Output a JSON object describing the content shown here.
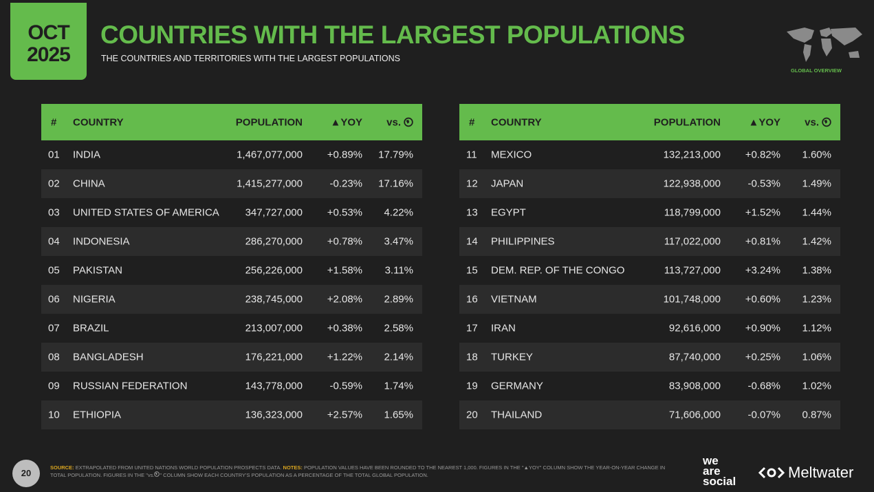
{
  "header": {
    "month": "OCT",
    "year": "2025",
    "title": "COUNTRIES WITH THE LARGEST POPULATIONS",
    "subtitle": "THE COUNTRIES AND TERRITORIES WITH THE LARGEST POPULATIONS",
    "badge": "GLOBAL OVERVIEW"
  },
  "tables": [
    {
      "columns": [
        "#",
        "COUNTRY",
        "POPULATION",
        "▲YOY",
        "vs."
      ],
      "rows": [
        [
          "01",
          "INDIA",
          "1,467,077,000",
          "+0.89%",
          "17.79%"
        ],
        [
          "02",
          "CHINA",
          "1,415,277,000",
          "-0.23%",
          "17.16%"
        ],
        [
          "03",
          "UNITED STATES OF AMERICA",
          "347,727,000",
          "+0.53%",
          "4.22%"
        ],
        [
          "04",
          "INDONESIA",
          "286,270,000",
          "+0.78%",
          "3.47%"
        ],
        [
          "05",
          "PAKISTAN",
          "256,226,000",
          "+1.58%",
          "3.11%"
        ],
        [
          "06",
          "NIGERIA",
          "238,745,000",
          "+2.08%",
          "2.89%"
        ],
        [
          "07",
          "BRAZIL",
          "213,007,000",
          "+0.38%",
          "2.58%"
        ],
        [
          "08",
          "BANGLADESH",
          "176,221,000",
          "+1.22%",
          "2.14%"
        ],
        [
          "09",
          "RUSSIAN FEDERATION",
          "143,778,000",
          "-0.59%",
          "1.74%"
        ],
        [
          "10",
          "ETHIOPIA",
          "136,323,000",
          "+2.57%",
          "1.65%"
        ]
      ]
    },
    {
      "columns": [
        "#",
        "COUNTRY",
        "POPULATION",
        "▲YOY",
        "vs."
      ],
      "rows": [
        [
          "11",
          "MEXICO",
          "132,213,000",
          "+0.82%",
          "1.60%"
        ],
        [
          "12",
          "JAPAN",
          "122,938,000",
          "-0.53%",
          "1.49%"
        ],
        [
          "13",
          "EGYPT",
          "118,799,000",
          "+1.52%",
          "1.44%"
        ],
        [
          "14",
          "PHILIPPINES",
          "117,022,000",
          "+0.81%",
          "1.42%"
        ],
        [
          "15",
          "DEM. REP. OF THE CONGO",
          "113,727,000",
          "+3.24%",
          "1.38%"
        ],
        [
          "16",
          "VIETNAM",
          "101,748,000",
          "+0.60%",
          "1.23%"
        ],
        [
          "17",
          "IRAN",
          "92,616,000",
          "+0.90%",
          "1.12%"
        ],
        [
          "18",
          "TURKEY",
          "87,740,000",
          "+0.25%",
          "1.06%"
        ],
        [
          "19",
          "GERMANY",
          "83,908,000",
          "-0.68%",
          "1.02%"
        ],
        [
          "20",
          "THAILAND",
          "71,606,000",
          "-0.07%",
          "0.87%"
        ]
      ]
    }
  ],
  "footer": {
    "page": "20",
    "source_label": "SOURCE:",
    "source": "EXTRAPOLATED FROM UNITED NATIONS WORLD POPULATION PROSPECTS DATA.",
    "notes_label": "NOTES:",
    "notes_1": "POPULATION VALUES HAVE BEEN ROUNDED TO THE NEAREST 1,000. FIGURES IN THE \"▲YOY\" COLUMN SHOW THE YEAR-ON-YEAR CHANGE IN TOTAL POPULATION. FIGURES IN THE \"vs.",
    "notes_2": "\" COLUMN SHOW EACH COUNTRY'S POPULATION AS A PERCENTAGE OF THE TOTAL GLOBAL POPULATION.",
    "logo_1": [
      "we",
      "are",
      "social"
    ],
    "logo_2": "Meltwater"
  }
}
